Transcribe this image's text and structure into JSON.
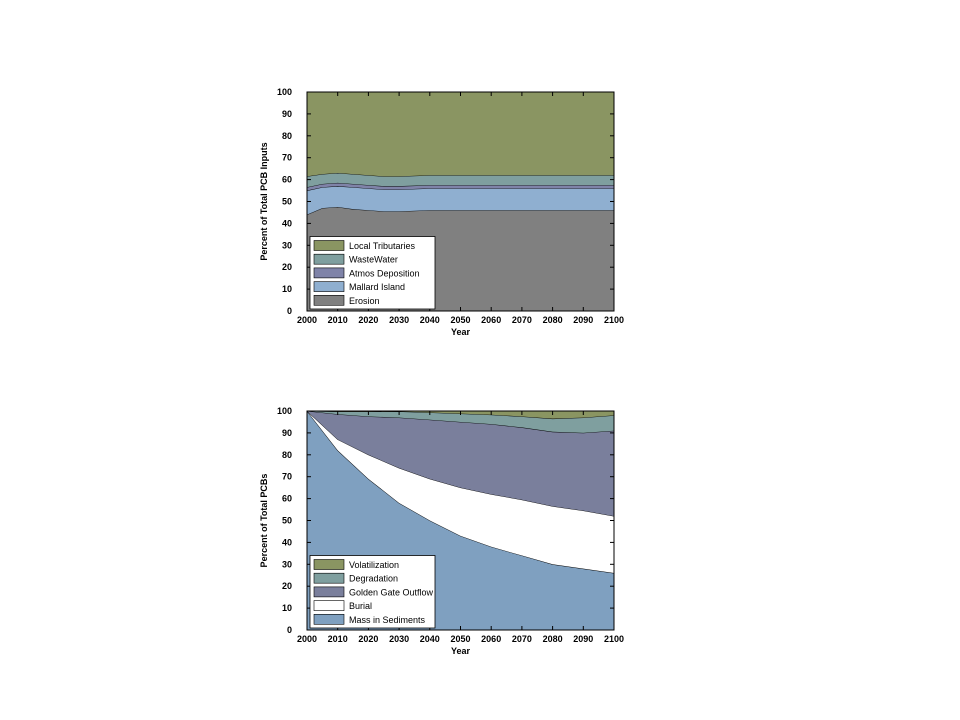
{
  "chart_data": [
    {
      "type": "area",
      "stacked": true,
      "xlabel": "Year",
      "ylabel": "Percent of Total PCB Inputs",
      "xlim": [
        2000,
        2100
      ],
      "ylim": [
        0,
        100
      ],
      "xticks": [
        2000,
        2010,
        2020,
        2030,
        2040,
        2050,
        2060,
        2070,
        2080,
        2090,
        2100
      ],
      "yticks": [
        0,
        10,
        20,
        30,
        40,
        50,
        60,
        70,
        80,
        90,
        100
      ],
      "legend_position": "bottom-left",
      "x": [
        2000,
        2005,
        2010,
        2015,
        2020,
        2025,
        2030,
        2040,
        2050,
        2060,
        2070,
        2080,
        2090,
        2100
      ],
      "series": [
        {
          "name": "Erosion",
          "color": "#808080",
          "values": [
            44,
            47,
            47.5,
            46.5,
            46,
            45.5,
            45.5,
            46,
            46,
            46,
            46,
            46,
            46,
            46
          ]
        },
        {
          "name": "Mallard Island",
          "color": "#8fafd0",
          "values": [
            11,
            9.5,
            9.5,
            10,
            10,
            10,
            10,
            10,
            10,
            10,
            10,
            10,
            10,
            10
          ]
        },
        {
          "name": "Atmos Deposition",
          "color": "#7f83a8",
          "values": [
            1.5,
            1.5,
            1.5,
            1.5,
            1.5,
            1.5,
            1.5,
            1.5,
            1.5,
            1.5,
            1.5,
            1.5,
            1.5,
            1.5
          ]
        },
        {
          "name": "WasteWater",
          "color": "#7f9f9f",
          "values": [
            5,
            4.5,
            4.5,
            4.5,
            4.5,
            4.5,
            4.5,
            4.5,
            4.5,
            4.5,
            4.5,
            4.5,
            4.5,
            4.5
          ]
        },
        {
          "name": "Local Tributaries",
          "color": "#8a9562",
          "values": [
            38.5,
            37.5,
            37,
            37.5,
            38,
            38.5,
            38.5,
            38,
            38,
            38,
            38,
            38,
            38,
            38
          ]
        }
      ],
      "legend": [
        "Local Tributaries",
        "WasteWater",
        "Atmos Deposition",
        "Mallard Island",
        "Erosion"
      ]
    },
    {
      "type": "area",
      "stacked": true,
      "xlabel": "Year",
      "ylabel": "Percent of Total PCBs",
      "xlim": [
        2000,
        2100
      ],
      "ylim": [
        0,
        100
      ],
      "xticks": [
        2000,
        2010,
        2020,
        2030,
        2040,
        2050,
        2060,
        2070,
        2080,
        2090,
        2100
      ],
      "yticks": [
        0,
        10,
        20,
        30,
        40,
        50,
        60,
        70,
        80,
        90,
        100
      ],
      "legend_position": "bottom-left",
      "x": [
        2000,
        2010,
        2020,
        2030,
        2040,
        2050,
        2060,
        2070,
        2080,
        2090,
        2100
      ],
      "series": [
        {
          "name": "Mass in Sediments",
          "color": "#7fa0c0",
          "values": [
            100,
            82,
            69,
            58,
            50,
            43,
            38,
            34,
            30,
            28,
            26
          ]
        },
        {
          "name": "Burial",
          "color": "#ffffff",
          "values": [
            0,
            5,
            11,
            16,
            19,
            22,
            24,
            25.5,
            26.5,
            26.5,
            26
          ]
        },
        {
          "name": "Golden Gate Outflow",
          "color": "#7a7f9c",
          "values": [
            0,
            11.5,
            17.5,
            23,
            27,
            30,
            32,
            33,
            34,
            35.5,
            39
          ]
        },
        {
          "name": "Degradation",
          "color": "#7f9f9f",
          "values": [
            0,
            1.2,
            2.2,
            2.8,
            3.3,
            3.8,
            4.3,
            5,
            6,
            7,
            7
          ]
        },
        {
          "name": "Volatilization",
          "color": "#8a9562",
          "values": [
            0,
            0.3,
            0.3,
            0.2,
            0.7,
            1.2,
            1.7,
            2.5,
            3.5,
            3,
            2
          ]
        }
      ],
      "legend": [
        "Volatilization",
        "Degradation",
        "Golden Gate Outflow",
        "Burial",
        "Mass in Sediments"
      ]
    }
  ]
}
